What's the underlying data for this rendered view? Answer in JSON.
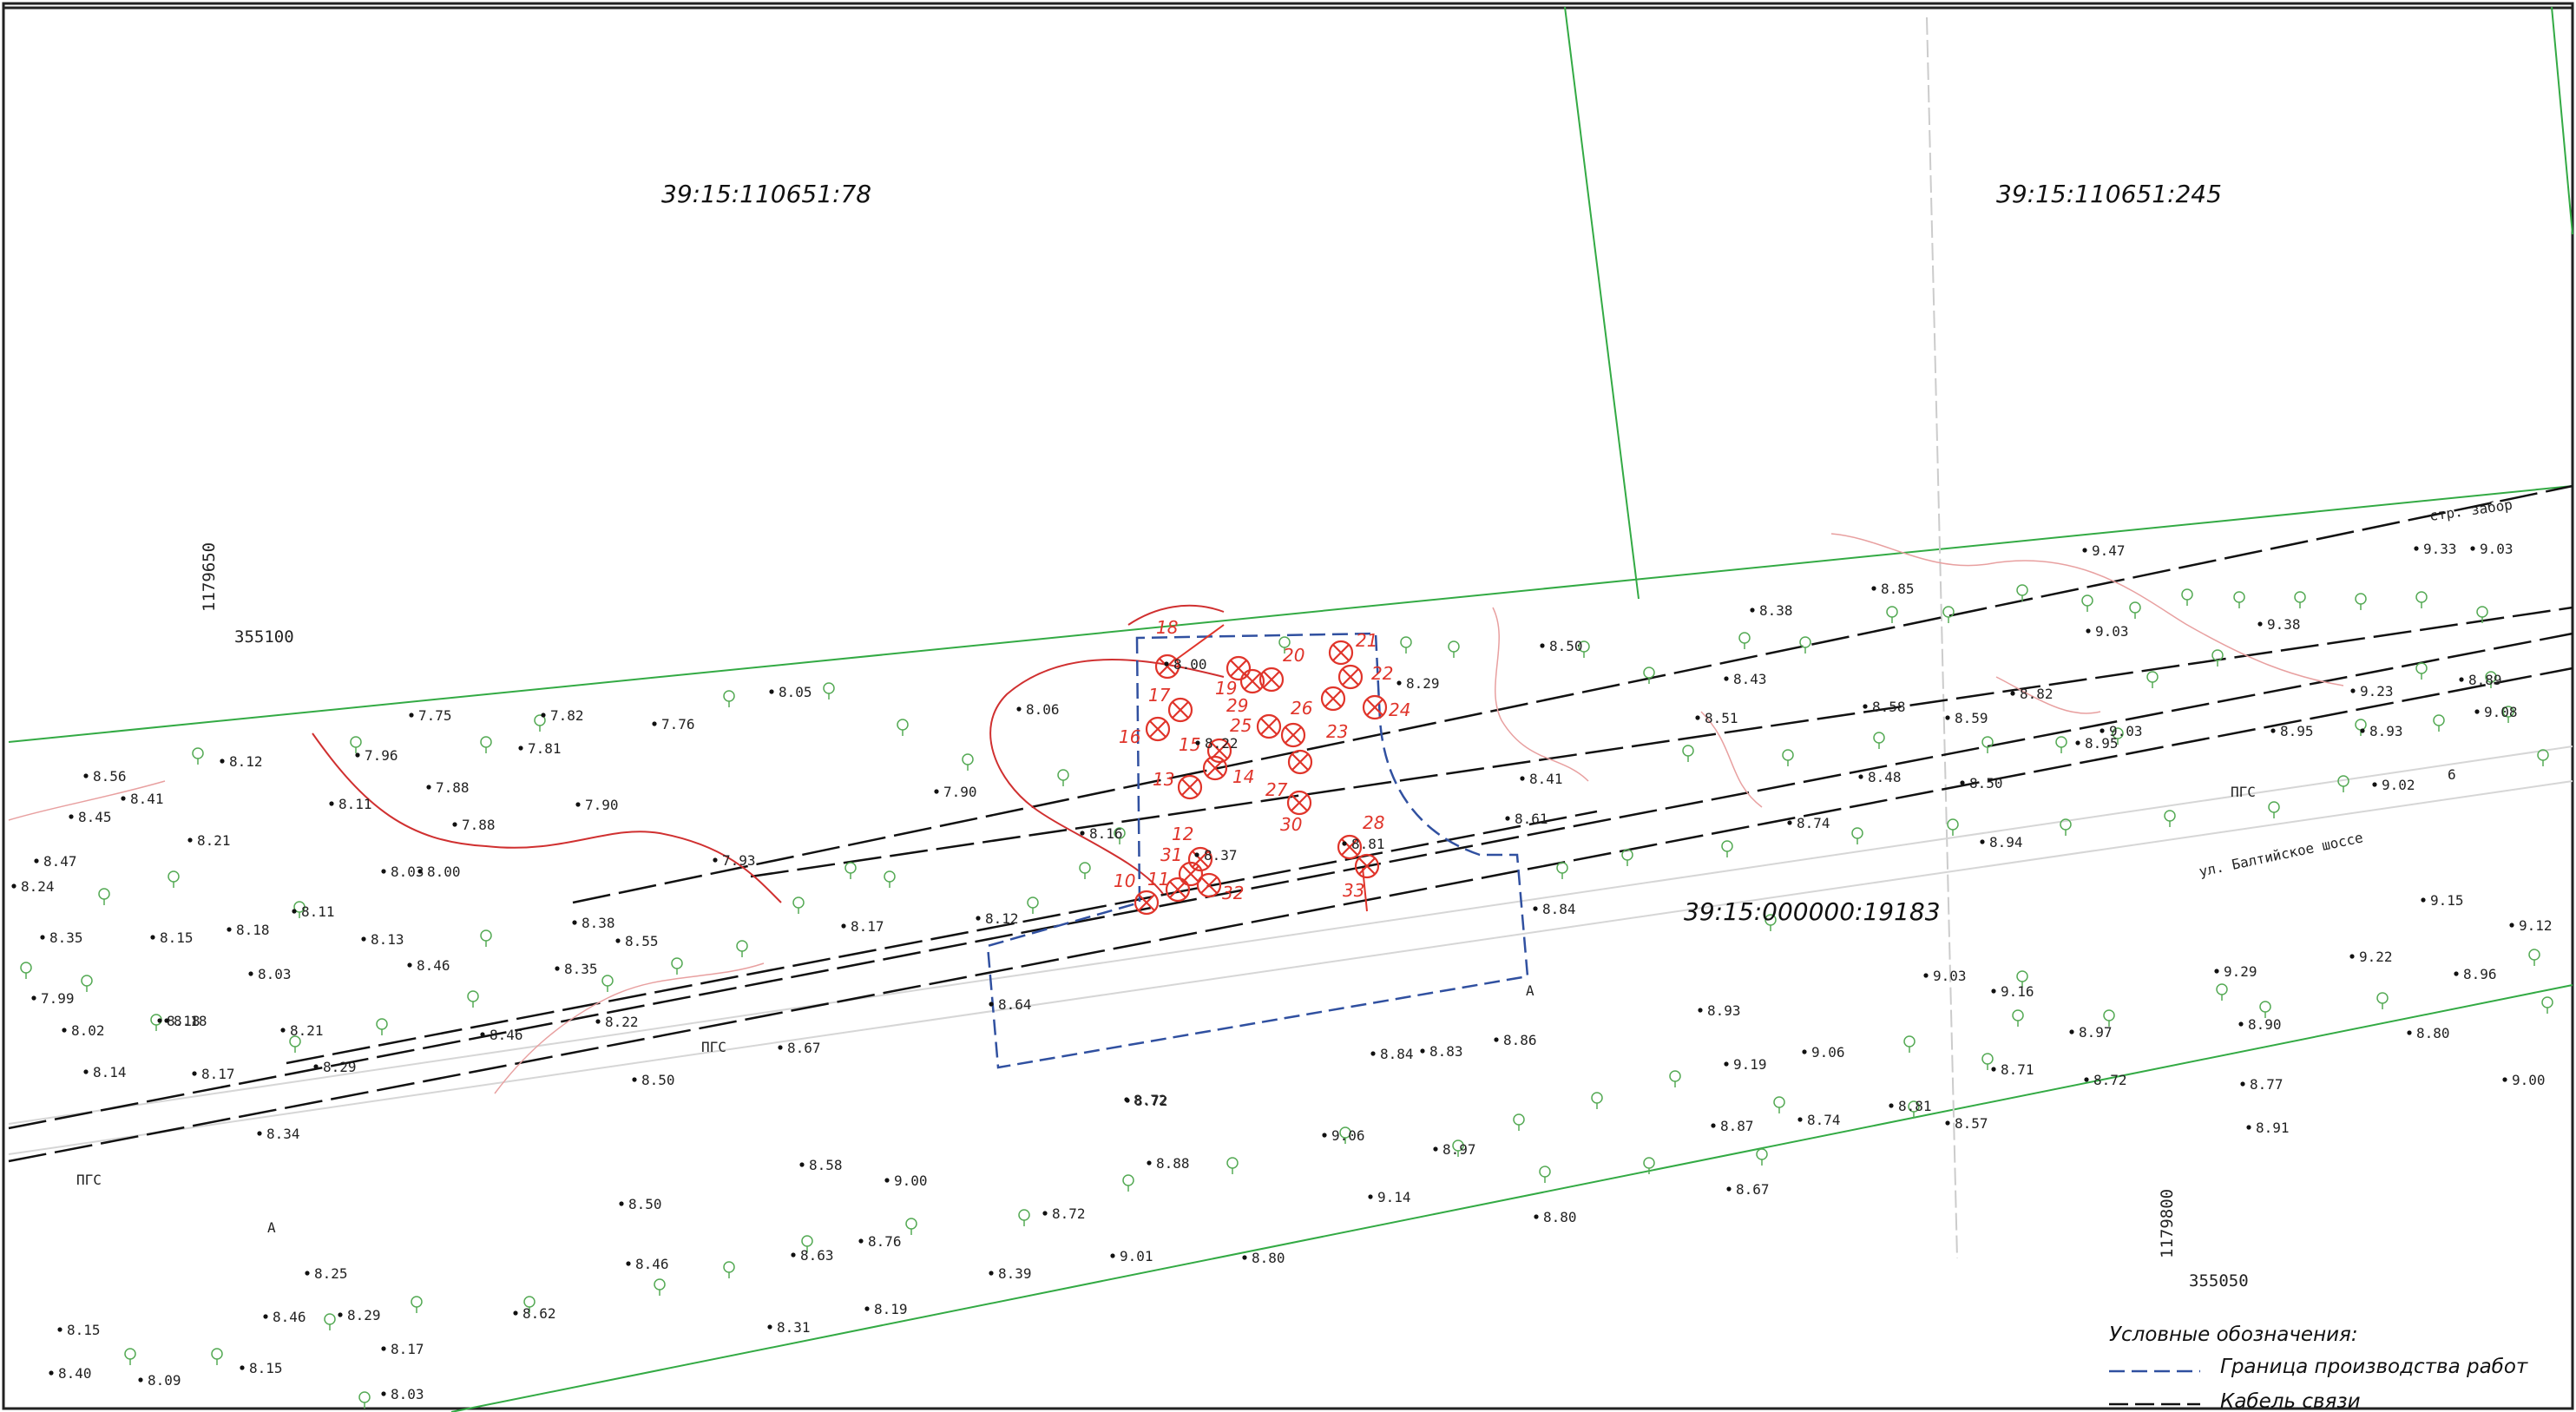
{
  "parcels": [
    {
      "id": "p1",
      "label": "39:15:110651:78"
    },
    {
      "id": "p2",
      "label": "39:15:110651:245"
    },
    {
      "id": "p3",
      "label": "39:15:000000:19183"
    }
  ],
  "grid_labels": [
    {
      "id": "g1",
      "x_text": "1179650",
      "y_text": "355100"
    },
    {
      "id": "g2",
      "x_text": "1179800",
      "y_text": "355050"
    }
  ],
  "street_label": "ул. Балтийское шоссе",
  "fence_label": "стр. забор",
  "surface_labels": [
    "ПГС",
    "ПГС",
    "ПГС"
  ],
  "section_marks": [
    "А",
    "А",
    "6"
  ],
  "elevations": [
    "8.05",
    "8.06",
    "8.00",
    "7.75",
    "7.82",
    "7.76",
    "7.96",
    "7.81",
    "8.12",
    "8.56",
    "8.41",
    "8.45",
    "7.88",
    "7.88",
    "8.11",
    "7.90",
    "7.90",
    "8.21",
    "8.47",
    "8.24",
    "8.03",
    "8.00",
    "7.93",
    "8.16",
    "8.11",
    "8.35",
    "8.15",
    "8.18",
    "8.13",
    "8.46",
    "8.03",
    "8.38",
    "8.55",
    "8.17",
    "8.12",
    "7.99",
    "8.18",
    "8.35",
    "8.02",
    "8.18",
    "8.21",
    "8.22",
    "8.46",
    "8.14",
    "8.17",
    "8.29",
    "8.34",
    "8.50",
    "8.67",
    "8.64",
    "8.22",
    "8.37",
    "8.72",
    "8.81",
    "8.29",
    "8.50",
    "8.41",
    "8.61",
    "8.84",
    "8.38",
    "8.85",
    "8.43",
    "8.51",
    "8.58",
    "8.59",
    "8.82",
    "8.48",
    "8.50",
    "8.74",
    "8.94",
    "9.47",
    "9.03",
    "9.38",
    "9.33",
    "9.03",
    "8.89",
    "9.23",
    "9.08",
    "8.95",
    "9.03",
    "8.95",
    "8.93",
    "9.02",
    "9.15",
    "9.12",
    "9.22",
    "8.96",
    "9.29",
    "8.90",
    "8.80",
    "9.00",
    "9.16",
    "8.97",
    "9.03",
    "8.93",
    "9.06",
    "9.19",
    "8.71",
    "8.72",
    "8.77",
    "8.91",
    "8.83",
    "8.86",
    "8.72",
    "9.06",
    "8.97",
    "8.87",
    "8.74",
    "8.81",
    "8.57",
    "8.88",
    "9.14",
    "8.67",
    "8.80",
    "8.58",
    "9.00",
    "8.50",
    "8.72",
    "8.76",
    "8.84",
    "8.46",
    "8.63",
    "9.01",
    "8.80",
    "8.39",
    "8.25",
    "8.46",
    "8.29",
    "8.62",
    "8.19",
    "8.17",
    "8.31",
    "8.15",
    "8.40",
    "8.09",
    "8.15",
    "8.03"
  ],
  "well_numbers": [
    "18",
    "17",
    "16",
    "15",
    "14",
    "13",
    "12",
    "11",
    "10",
    "31",
    "32",
    "19",
    "20",
    "21",
    "22",
    "24",
    "23",
    "25",
    "26",
    "27",
    "28",
    "29",
    "30",
    "33",
    "8.00"
  ],
  "legend": {
    "title": "Условные обозначения:",
    "items": [
      {
        "label": "Граница производства работ",
        "style": "boundary",
        "color": "#3050a0"
      },
      {
        "label": "Кабель связи",
        "style": "cable",
        "color": "#111111"
      }
    ]
  },
  "colors": {
    "parcel_line": "#33aa44",
    "boundary": "#3050a0",
    "wells": "#e0342a",
    "relief": "#e58080",
    "vegetation": "#55aa55"
  }
}
